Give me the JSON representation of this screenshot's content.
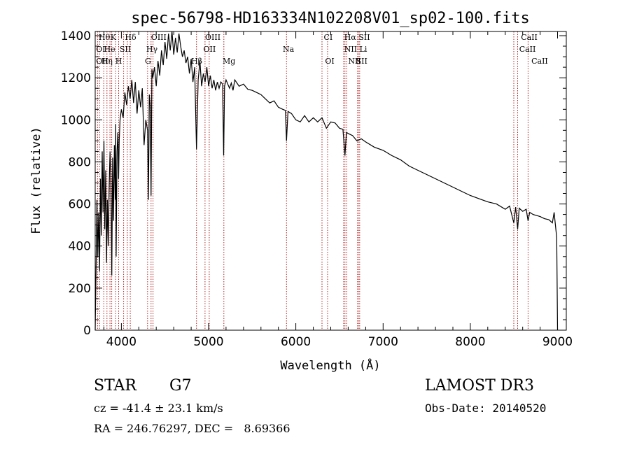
{
  "chart_data": {
    "type": "line",
    "title": "spec-56798-HD163334N102208V01_sp02-100.fits",
    "xlabel": "Wavelength (Å)",
    "ylabel": "Flux (relative)",
    "xlim": [
      3700,
      9100
    ],
    "ylim": [
      0,
      1420
    ],
    "x_ticks": [
      4000,
      5000,
      6000,
      7000,
      8000,
      9000
    ],
    "y_ticks": [
      0,
      200,
      400,
      600,
      800,
      1000,
      1200,
      1400
    ],
    "grid": false,
    "series": [
      {
        "name": "flux",
        "x": [
          3700,
          3710,
          3720,
          3730,
          3740,
          3750,
          3760,
          3770,
          3780,
          3790,
          3800,
          3810,
          3820,
          3830,
          3840,
          3850,
          3860,
          3870,
          3880,
          3890,
          3900,
          3910,
          3920,
          3930,
          3935,
          3940,
          3950,
          3960,
          3968,
          3975,
          3985,
          4000,
          4020,
          4040,
          4060,
          4080,
          4100,
          4120,
          4140,
          4160,
          4180,
          4200,
          4220,
          4240,
          4260,
          4280,
          4300,
          4310,
          4320,
          4330,
          4340,
          4350,
          4360,
          4380,
          4400,
          4420,
          4440,
          4460,
          4480,
          4500,
          4520,
          4540,
          4560,
          4580,
          4600,
          4620,
          4640,
          4660,
          4680,
          4700,
          4720,
          4740,
          4760,
          4780,
          4800,
          4820,
          4840,
          4861,
          4880,
          4900,
          4920,
          4940,
          4960,
          4980,
          5000,
          5020,
          5040,
          5060,
          5080,
          5100,
          5120,
          5140,
          5160,
          5172,
          5183,
          5200,
          5220,
          5240,
          5260,
          5280,
          5300,
          5350,
          5400,
          5450,
          5500,
          5550,
          5600,
          5650,
          5700,
          5750,
          5800,
          5850,
          5880,
          5893,
          5910,
          5950,
          6000,
          6050,
          6100,
          6150,
          6200,
          6250,
          6300,
          6350,
          6400,
          6450,
          6500,
          6540,
          6563,
          6580,
          6600,
          6650,
          6700,
          6750,
          6800,
          6900,
          7000,
          7100,
          7200,
          7300,
          7400,
          7500,
          7600,
          7700,
          7800,
          7900,
          8000,
          8100,
          8200,
          8300,
          8400,
          8450,
          8498,
          8520,
          8542,
          8560,
          8600,
          8640,
          8662,
          8680,
          8720,
          8760,
          8800,
          8850,
          8900,
          8940,
          8960,
          8990,
          9000
        ],
        "values": [
          0,
          280,
          620,
          350,
          560,
          280,
          720,
          450,
          850,
          560,
          900,
          480,
          760,
          320,
          620,
          400,
          680,
          850,
          740,
          260,
          820,
          520,
          880,
          620,
          980,
          350,
          850,
          940,
          720,
          900,
          1000,
          1050,
          1010,
          1130,
          1070,
          1160,
          1100,
          1190,
          1080,
          1180,
          1030,
          1140,
          1060,
          1150,
          880,
          1000,
          950,
          620,
          1120,
          1070,
          640,
          1240,
          1200,
          1250,
          1160,
          1280,
          1210,
          1330,
          1260,
          1370,
          1290,
          1410,
          1330,
          1420,
          1310,
          1390,
          1320,
          1410,
          1350,
          1300,
          1330,
          1270,
          1300,
          1220,
          1290,
          1180,
          1250,
          860,
          1190,
          1280,
          1160,
          1220,
          1180,
          1250,
          1160,
          1210,
          1150,
          1190,
          1140,
          1180,
          1150,
          1180,
          1170,
          830,
          1160,
          1190,
          1170,
          1150,
          1175,
          1140,
          1190,
          1160,
          1170,
          1145,
          1140,
          1130,
          1120,
          1100,
          1080,
          1090,
          1060,
          1050,
          1045,
          900,
          1040,
          1030,
          1000,
          990,
          1020,
          990,
          1010,
          990,
          1010,
          960,
          990,
          985,
          960,
          955,
          830,
          940,
          935,
          925,
          900,
          910,
          895,
          870,
          855,
          830,
          810,
          780,
          760,
          740,
          720,
          700,
          680,
          660,
          640,
          625,
          610,
          600,
          575,
          590,
          510,
          585,
          480,
          580,
          565,
          575,
          520,
          560,
          550,
          545,
          540,
          530,
          525,
          510,
          560,
          440,
          0
        ]
      }
    ],
    "annotations": {
      "row1": [
        "Hθ",
        "K",
        "Hδ",
        "OIII",
        "OIII",
        "CI",
        "Hα",
        "SII",
        "CaII"
      ],
      "row2": [
        "OI",
        "He",
        "SII",
        "Hγ",
        "OII",
        "Na",
        "NII",
        "Li",
        "CaII"
      ],
      "row3": [
        "OII",
        "Hη",
        "H",
        "G",
        "Hβ",
        "Mg",
        "OI",
        "NII",
        "SII",
        "CaII"
      ],
      "line_wavelengths": [
        3727,
        3750,
        3798,
        3835,
        3869,
        3889,
        3934,
        3969,
        4026,
        4068,
        4102,
        4300,
        4340,
        4363,
        4861,
        4959,
        5007,
        5175,
        5893,
        6300,
        6364,
        6548,
        6563,
        6584,
        6708,
        6716,
        6731,
        8498,
        8542,
        8662
      ]
    }
  },
  "info": {
    "object_type": "STAR",
    "subclass": "G7",
    "survey": "LAMOST DR3",
    "redshift_line": "cz = -41.4 ± 23.1 km/s",
    "obs_date": "Obs-Date: 20140520",
    "coords": "RA = 246.76297, DEC =   8.69366"
  },
  "colors": {
    "axis": "#000000",
    "spectrum": "#000000",
    "marker_lines": "#b22222",
    "background": "#ffffff"
  }
}
